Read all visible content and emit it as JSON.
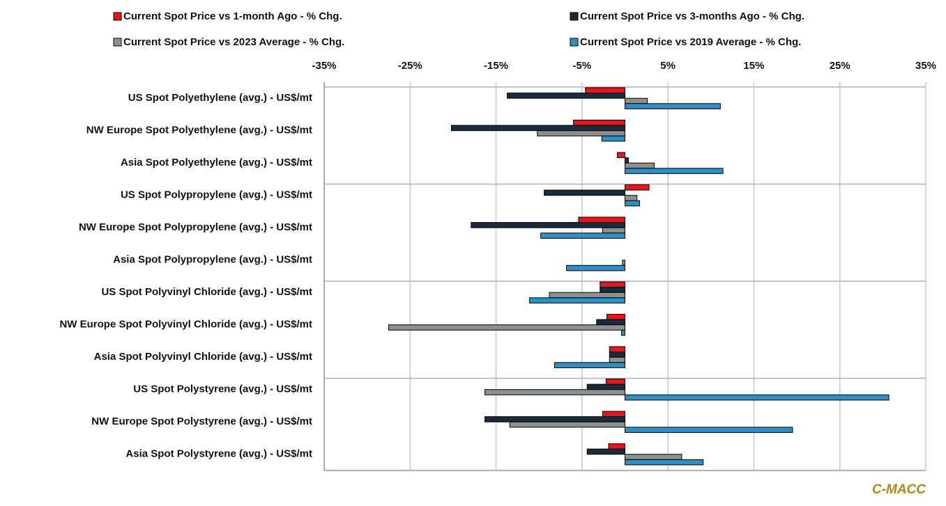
{
  "chart_data": {
    "type": "hbar",
    "categories": [
      "US Spot Polyethylene (avg.) - US$/mt",
      "NW Europe Spot Polyethylene (avg.) - US$/mt",
      "Asia Spot Polyethylene (avg.) - US$/mt",
      "US Spot Polypropylene (avg.) - US$/mt",
      "NW Europe Spot Polypropylene (avg.) - US$/mt",
      "Asia Spot Polypropylene (avg.) - US$/mt",
      "US Spot Polyvinyl Chloride (avg.) - US$/mt",
      "NW Europe Spot Polyvinyl Chloride (avg.)  - US$/mt",
      "Asia Spot Polyvinyl Chloride (avg.) - US$/mt",
      "US Spot Polystyrene (avg.) - US$/mt",
      "NW Europe Spot Polystyrene (avg.) - US$/mt",
      "Asia Spot Polystyrene (avg.) - US$/mt"
    ],
    "series": [
      {
        "name": "Current Spot Price vs 1-month Ago - % Chg.",
        "color": "#e8161b",
        "values": [
          -4.6,
          -6.0,
          -0.9,
          2.8,
          -5.4,
          0,
          -2.9,
          -2.1,
          -1.8,
          -2.2,
          -2.6,
          -1.9
        ]
      },
      {
        "name": "Current Spot Price vs 3-months Ago - % Chg.",
        "color": "#1b2a3d",
        "values": [
          -13.7,
          -20.2,
          0.4,
          -9.4,
          -17.9,
          0,
          -2.9,
          -3.3,
          -1.8,
          -4.4,
          -16.3,
          -4.4
        ]
      },
      {
        "name": "Current Spot Price vs 2023 Average - % Chg.",
        "color": "#8c918d",
        "values": [
          2.6,
          -10.2,
          3.4,
          1.4,
          -2.6,
          -0.3,
          -8.8,
          -27.5,
          -1.8,
          -16.3,
          -13.4,
          6.6
        ]
      },
      {
        "name": "Current Spot Price vs 2019 Average - % Chg.",
        "color": "#2f8fc4",
        "values": [
          11.1,
          -2.7,
          11.4,
          1.7,
          -9.8,
          -6.8,
          -11.1,
          -0.4,
          -8.2,
          30.7,
          19.5,
          9.1
        ]
      }
    ],
    "xlim": [
      -35,
      35
    ],
    "xticks": [
      {
        "value": -35,
        "label": "-35%"
      },
      {
        "value": -25,
        "label": "-25%"
      },
      {
        "value": -15,
        "label": "-15%"
      },
      {
        "value": -5,
        "label": "-5%"
      },
      {
        "value": 5,
        "label": "5%"
      },
      {
        "value": 15,
        "label": "15%"
      },
      {
        "value": 25,
        "label": "25%"
      },
      {
        "value": 35,
        "label": "35%"
      }
    ],
    "grid": true,
    "legend": "top",
    "source": "C-MACC"
  }
}
